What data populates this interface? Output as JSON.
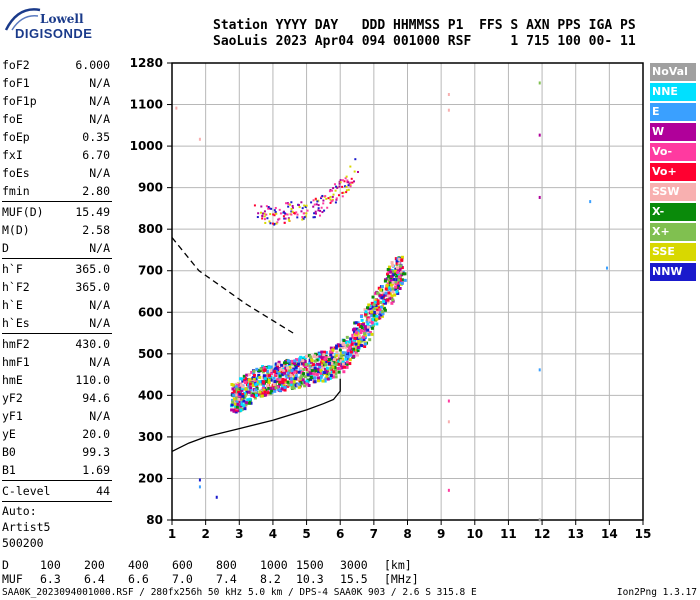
{
  "logo": {
    "top": "Lowell",
    "bottom": "DIGISONDE"
  },
  "header": {
    "line1": "Station YYYY DAY   DDD HHMMSS P1  FFS S AXN PPS IGA PS",
    "line2": "SaoLuis 2023 Apr04 094 001000 RSF     1 715 100 00- 11"
  },
  "params_group1": [
    {
      "label": "foF2",
      "value": "6.000"
    },
    {
      "label": "foF1",
      "value": "N/A"
    },
    {
      "label": "foF1p",
      "value": "N/A"
    },
    {
      "label": "foE",
      "value": "N/A"
    },
    {
      "label": "foEp",
      "value": "0.35"
    },
    {
      "label": "fxI",
      "value": "6.70"
    },
    {
      "label": "foEs",
      "value": "N/A"
    },
    {
      "label": "fmin",
      "value": "2.80"
    }
  ],
  "params_group2": [
    {
      "label": "MUF(D)",
      "value": "15.49"
    },
    {
      "label": "M(D)",
      "value": "2.58"
    },
    {
      "label": "D",
      "value": "N/A"
    }
  ],
  "params_group3": [
    {
      "label": "h`F",
      "value": "365.0"
    },
    {
      "label": "h`F2",
      "value": "365.0"
    },
    {
      "label": "h`E",
      "value": "N/A"
    },
    {
      "label": "h`Es",
      "value": "N/A"
    }
  ],
  "params_group4": [
    {
      "label": "hmF2",
      "value": "430.0"
    },
    {
      "label": "hmF1",
      "value": "N/A"
    },
    {
      "label": "hmE",
      "value": "110.0"
    },
    {
      "label": "yF2",
      "value": "94.6"
    },
    {
      "label": "yF1",
      "value": "N/A"
    },
    {
      "label": "yE",
      "value": "20.0"
    },
    {
      "label": "B0",
      "value": "99.3"
    },
    {
      "label": "B1",
      "value": "1.69"
    }
  ],
  "params_group5": [
    {
      "label": "C-level",
      "value": "44"
    }
  ],
  "autoscaling": {
    "line1": "Auto:",
    "line2": "Artist5",
    "line3": "500200"
  },
  "legend": [
    {
      "label": "NoVal",
      "color": "#a0a0a0"
    },
    {
      "label": "NNE",
      "color": "#00e0ff"
    },
    {
      "label": "E",
      "color": "#3aa0ff"
    },
    {
      "label": "W",
      "color": "#b0009a"
    },
    {
      "label": "Vo-",
      "color": "#ff3aa0"
    },
    {
      "label": "Vo+",
      "color": "#ff0030"
    },
    {
      "label": "SSW",
      "color": "#f8b0b0"
    },
    {
      "label": "X-",
      "color": "#0a8a0a"
    },
    {
      "label": "X+",
      "color": "#80c050"
    },
    {
      "label": "SSE",
      "color": "#d8d800"
    },
    {
      "label": "NNW",
      "color": "#1a1acc"
    }
  ],
  "muf_table": {
    "d_label": "D",
    "muf_label": "MUF",
    "d_values": [
      "100",
      "200",
      "400",
      "600",
      "800",
      "1000",
      "1500",
      "3000",
      "[km]"
    ],
    "muf_values": [
      "6.3",
      "6.4",
      "6.6",
      "7.0",
      "7.4",
      "8.2",
      "10.3",
      "15.5",
      "[MHz]"
    ]
  },
  "footer": "SAA0K_2023094001000.RSF / 280fx256h 50 kHz 5.0 km / DPS-4 SAA0K 903 / 2.6 S 315.8 E",
  "version": "Ion2Png 1.3.17",
  "chart_data": {
    "type": "scatter",
    "xlim": [
      1,
      15
    ],
    "ylim": [
      80,
      1280
    ],
    "x_ticks": [
      "1",
      "2",
      "3",
      "4",
      "5",
      "6",
      "7",
      "8",
      "9",
      "10",
      "11",
      "12",
      "13",
      "14",
      "15"
    ],
    "y_ticks": [
      "80",
      "200",
      "300",
      "400",
      "500",
      "600",
      "700",
      "800",
      "900",
      "1000",
      "1100",
      "1280"
    ],
    "grid": true,
    "y_scale": "piecewise",
    "profile_solid": [
      [
        1,
        265
      ],
      [
        1.5,
        285
      ],
      [
        2,
        300
      ],
      [
        3,
        320
      ],
      [
        4,
        340
      ],
      [
        5,
        365
      ],
      [
        5.5,
        380
      ],
      [
        5.8,
        390
      ],
      [
        6.0,
        410
      ],
      [
        6.0,
        440
      ]
    ],
    "profile_dashed": [
      [
        1,
        780
      ],
      [
        1.3,
        750
      ],
      [
        1.8,
        700
      ],
      [
        2.5,
        660
      ],
      [
        3.2,
        620
      ],
      [
        4,
        580
      ],
      [
        4.6,
        550
      ]
    ],
    "trace_main": [
      [
        2.8,
        380
      ],
      [
        3,
        390
      ],
      [
        3.5,
        420
      ],
      [
        4,
        430
      ],
      [
        4.5,
        440
      ],
      [
        5,
        450
      ],
      [
        5.5,
        460
      ],
      [
        6,
        480
      ],
      [
        6.5,
        530
      ],
      [
        7,
        590
      ],
      [
        7.5,
        660
      ],
      [
        7.8,
        700
      ]
    ],
    "trace_upper": [
      [
        3.5,
        840
      ],
      [
        4,
        835
      ],
      [
        4.5,
        845
      ],
      [
        5,
        850
      ],
      [
        5.5,
        860
      ],
      [
        6,
        900
      ],
      [
        6.5,
        950
      ]
    ],
    "isolated_points": [
      {
        "x": 1.8,
        "y": 1020,
        "color": "#f8b0b0"
      },
      {
        "x": 1.8,
        "y": 200,
        "color": "#1a1acc"
      },
      {
        "x": 1.8,
        "y": 180,
        "color": "#3aa0ff"
      },
      {
        "x": 2.3,
        "y": 150,
        "color": "#1a1acc"
      },
      {
        "x": 9.2,
        "y": 1150,
        "color": "#f8b0b0"
      },
      {
        "x": 9.2,
        "y": 1090,
        "color": "#f8b0b0"
      },
      {
        "x": 9.2,
        "y": 390,
        "color": "#ff3aa0"
      },
      {
        "x": 9.2,
        "y": 340,
        "color": "#f8b0b0"
      },
      {
        "x": 9.2,
        "y": 170,
        "color": "#ff3aa0"
      },
      {
        "x": 11.9,
        "y": 1200,
        "color": "#80c050"
      },
      {
        "x": 11.9,
        "y": 1030,
        "color": "#b0009a"
      },
      {
        "x": 11.9,
        "y": 880,
        "color": "#b0009a"
      },
      {
        "x": 11.9,
        "y": 465,
        "color": "#3aa0ff"
      },
      {
        "x": 11.9,
        "y": 85,
        "color": "#a0a0a0"
      },
      {
        "x": 13.4,
        "y": 870,
        "color": "#3aa0ff"
      },
      {
        "x": 13.9,
        "y": 710,
        "color": "#3aa0ff"
      },
      {
        "x": 1.1,
        "y": 1095,
        "color": "#f8b0b0"
      }
    ]
  }
}
